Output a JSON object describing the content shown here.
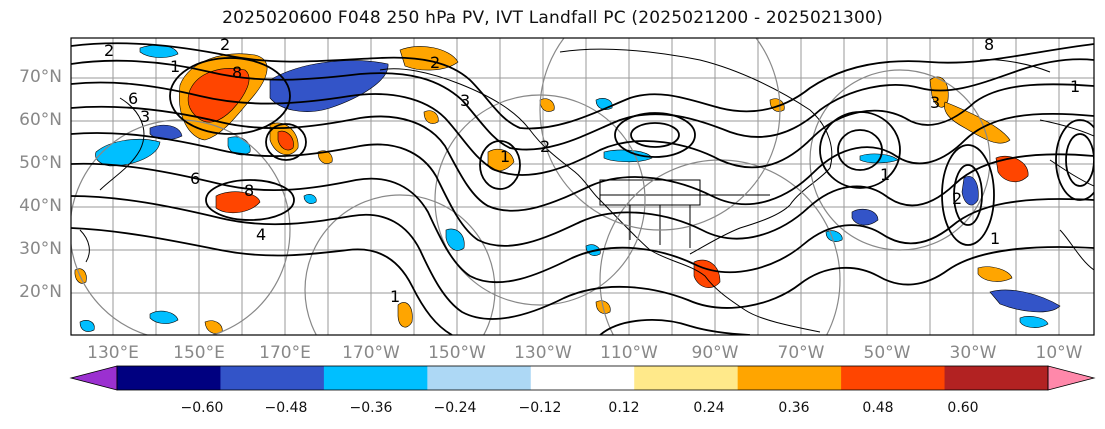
{
  "title": "2025020600 F048 250 hPa PV, IVT Landfall PC (2025021200 - 2025021300)",
  "lat_labels": [
    "70°N",
    "60°N",
    "50°N",
    "40°N",
    "30°N",
    "20°N"
  ],
  "lon_labels": [
    "130°E",
    "150°E",
    "170°E",
    "170°W",
    "150°W",
    "130°W",
    "110°W",
    "90°W",
    "70°W",
    "50°W",
    "30°W",
    "10°W"
  ],
  "contour_labels": [
    "2",
    "2",
    "6",
    "8",
    "1",
    "2",
    "3",
    "6",
    "8",
    "4",
    "1",
    "1",
    "2",
    "3",
    "8",
    "3",
    "1",
    "2",
    "1",
    "1"
  ],
  "colorbar": {
    "ticks": [
      "−0.60",
      "−0.48",
      "−0.36",
      "−0.24",
      "−0.12",
      "0.12",
      "0.24",
      "0.36",
      "0.48",
      "0.60"
    ],
    "colors": [
      "#9b30d0",
      "#000080",
      "#3354c8",
      "#00bfff",
      "#add8f5",
      "#ffffff",
      "#ffe98a",
      "#ffa500",
      "#ff4500",
      "#b22222",
      "#ff88aa"
    ]
  }
}
